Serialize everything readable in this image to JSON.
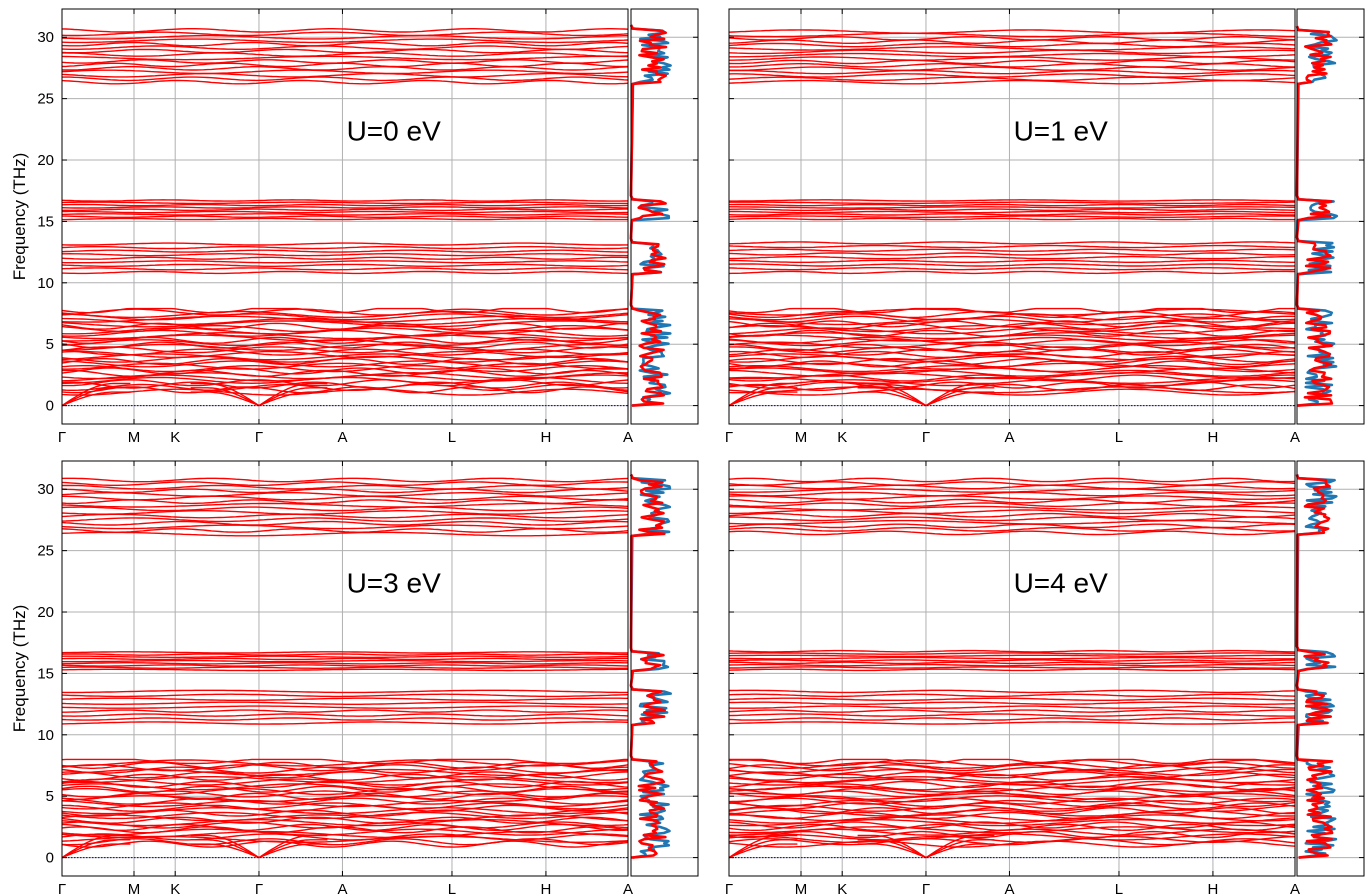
{
  "figure": {
    "ylabel": "Frequency (THz)",
    "colors": {
      "bands": "#ff0000",
      "dos_total": "#ff0000",
      "dos_partial": "#1f77b4",
      "zero_line": "#0000aa",
      "grid": "#b0b0b0",
      "frame": "#000000"
    }
  },
  "chart_data": [
    {
      "type": "line",
      "title": "U=0 eV",
      "xlabel": "",
      "ylabel": "Frequency (THz)",
      "x_ticks": [
        "Γ",
        "M",
        "K",
        "Γ",
        "A",
        "L",
        "H",
        "A"
      ],
      "y_ticks": [
        0,
        5,
        10,
        15,
        20,
        25,
        30
      ],
      "ylim": [
        -1.5,
        32.3
      ],
      "grid": true,
      "band_ranges_THz": [
        [
          0,
          7.9
        ],
        [
          10.7,
          13.3
        ],
        [
          15.1,
          16.8
        ],
        [
          26.2,
          30.7
        ]
      ],
      "dos_panel": {
        "series": [
          "total",
          "partial"
        ]
      }
    },
    {
      "type": "line",
      "title": "U=1 eV",
      "xlabel": "",
      "ylabel": "",
      "x_ticks": [
        "Γ",
        "M",
        "K",
        "Γ",
        "A",
        "L",
        "H",
        "A"
      ],
      "ylim": [
        -1.5,
        32.3
      ],
      "grid": true,
      "band_ranges_THz": [
        [
          0,
          7.9
        ],
        [
          10.7,
          13.4
        ],
        [
          15.1,
          16.8
        ],
        [
          26.2,
          30.6
        ]
      ],
      "dos_panel": {
        "series": [
          "total",
          "partial"
        ]
      }
    },
    {
      "type": "line",
      "title": "U=3 eV",
      "xlabel": "",
      "ylabel": "Frequency (THz)",
      "x_ticks": [
        "Γ",
        "M",
        "K",
        "Γ",
        "A",
        "L",
        "H",
        "A"
      ],
      "y_ticks": [
        0,
        5,
        10,
        15,
        20,
        25,
        30
      ],
      "ylim": [
        -1.5,
        32.3
      ],
      "grid": true,
      "band_ranges_THz": [
        [
          0,
          8.0
        ],
        [
          10.8,
          13.7
        ],
        [
          15.2,
          16.8
        ],
        [
          26.2,
          30.9
        ]
      ],
      "dos_panel": {
        "series": [
          "total",
          "partial"
        ]
      }
    },
    {
      "type": "line",
      "title": "U=4 eV",
      "xlabel": "",
      "ylabel": "",
      "x_ticks": [
        "Γ",
        "M",
        "K",
        "Γ",
        "A",
        "L",
        "H",
        "A"
      ],
      "ylim": [
        -1.5,
        32.3
      ],
      "grid": true,
      "band_ranges_THz": [
        [
          0,
          8.0
        ],
        [
          10.8,
          13.7
        ],
        [
          15.2,
          16.9
        ],
        [
          26.3,
          30.9
        ]
      ],
      "dos_panel": {
        "series": [
          "total",
          "partial"
        ]
      }
    }
  ]
}
